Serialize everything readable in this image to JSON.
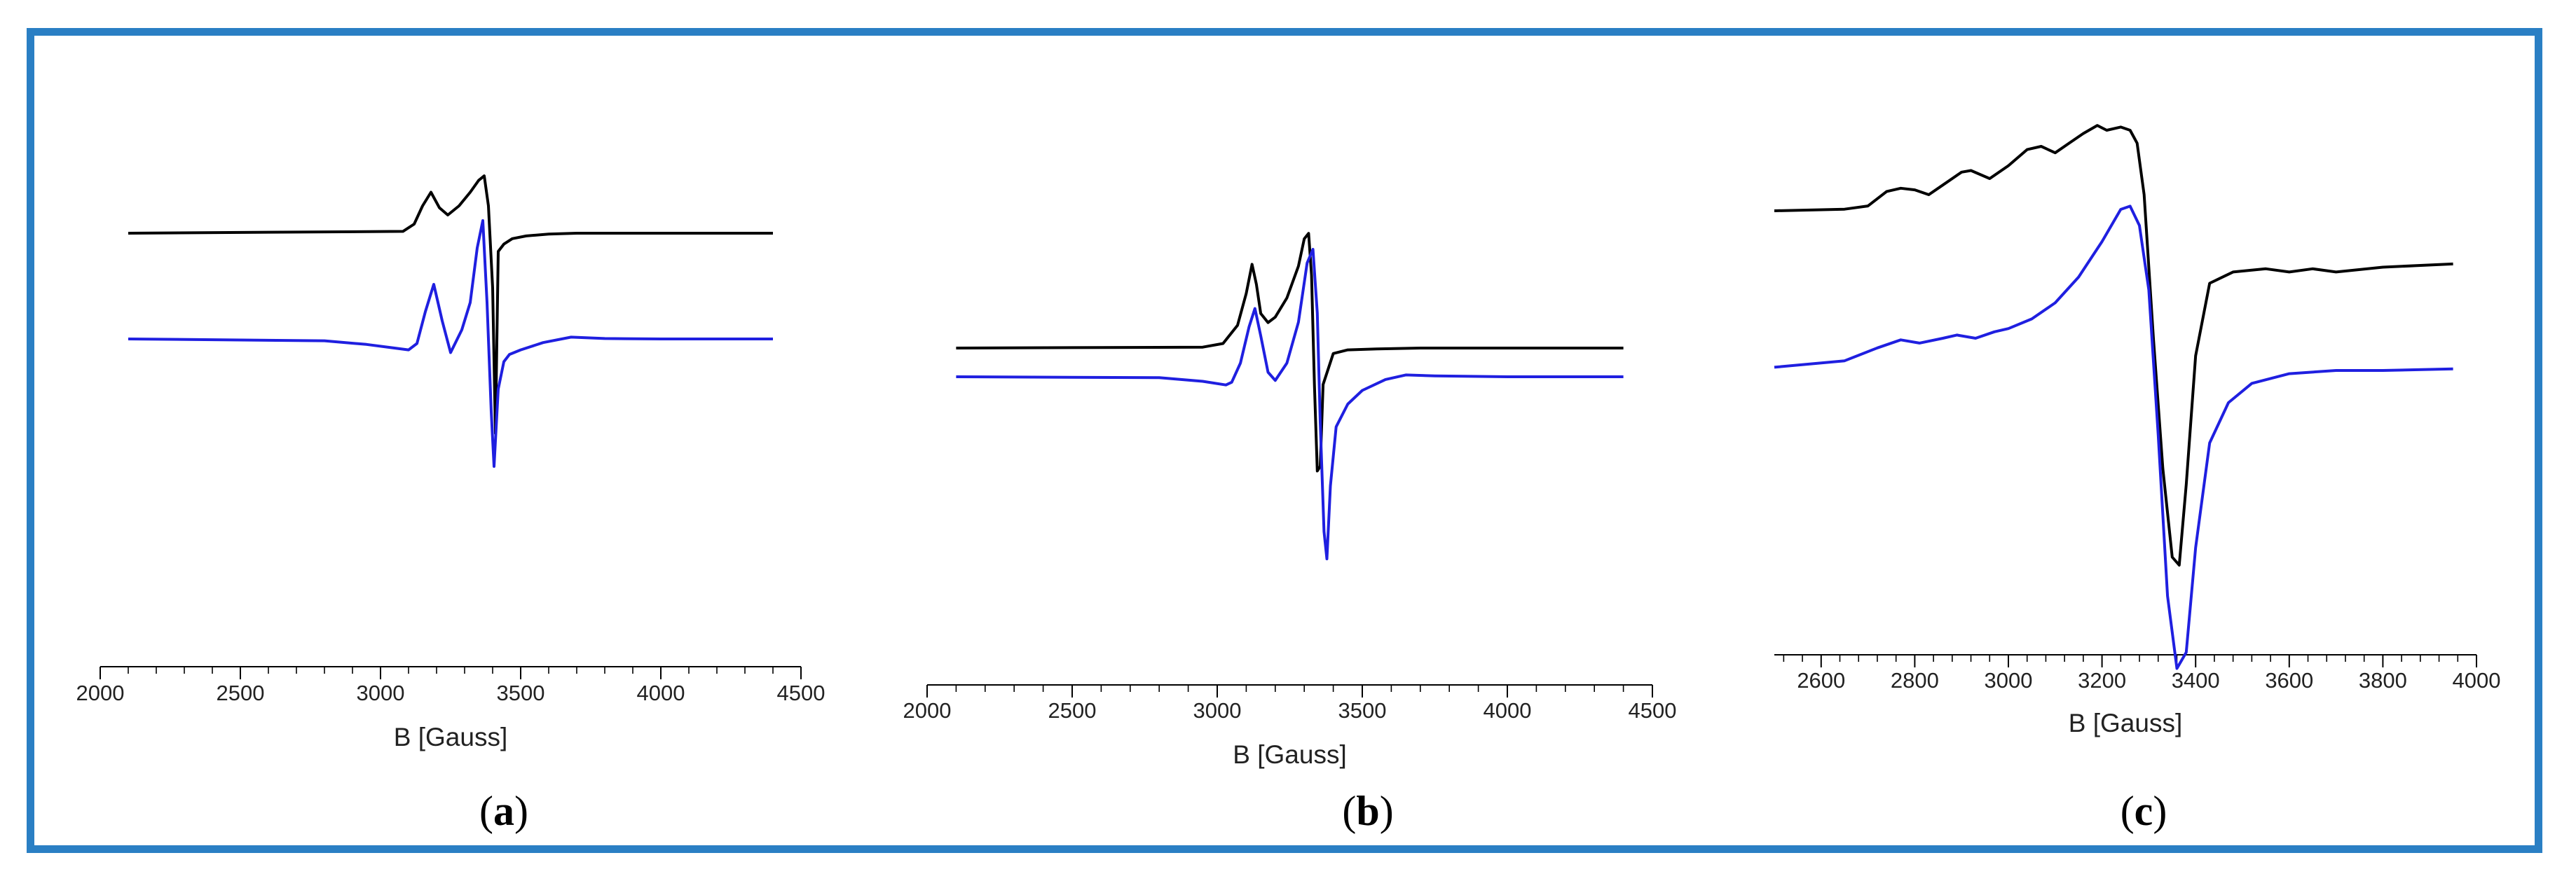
{
  "colors": {
    "frame": "#2A7FC4",
    "series_black": "#000000",
    "series_blue": "#1F1FE0"
  },
  "chart_data": [
    {
      "type": "line",
      "panel": "a",
      "xlabel": "B [Gauss]",
      "ylabel": "",
      "xlim": [
        2000,
        4500
      ],
      "xticks": [
        2000,
        2500,
        3000,
        3500,
        4000,
        4500
      ],
      "series": [
        {
          "color": "#000000",
          "x": [
            2100,
            3080,
            3120,
            3150,
            3180,
            3210,
            3240,
            3280,
            3320,
            3350,
            3370,
            3385,
            3400,
            3410,
            3420,
            3440,
            3470,
            3520,
            3600,
            3700,
            4400
          ],
          "y": [
            0,
            0.02,
            0.1,
            0.3,
            0.45,
            0.28,
            0.2,
            0.3,
            0.45,
            0.58,
            0.63,
            0.3,
            -0.6,
            -2.2,
            -0.2,
            -0.12,
            -0.06,
            -0.03,
            -0.01,
            0,
            0
          ]
        },
        {
          "color": "#1F1FE0",
          "x": [
            2100,
            2800,
            2950,
            3050,
            3100,
            3130,
            3160,
            3190,
            3220,
            3250,
            3290,
            3320,
            3345,
            3365,
            3380,
            3395,
            3405,
            3420,
            3440,
            3460,
            3500,
            3580,
            3680,
            3800,
            4000,
            4400
          ],
          "y": [
            0,
            -0.02,
            -0.06,
            -0.1,
            -0.12,
            -0.05,
            0.3,
            0.6,
            0.2,
            -0.15,
            0.1,
            0.4,
            1.0,
            1.3,
            0.4,
            -0.8,
            -1.4,
            -0.55,
            -0.25,
            -0.17,
            -0.12,
            -0.04,
            0.02,
            0.005,
            0,
            0
          ]
        }
      ]
    },
    {
      "type": "line",
      "panel": "b",
      "xlabel": "B [Gauss]",
      "ylabel": "",
      "xlim": [
        2000,
        4500
      ],
      "xticks": [
        2000,
        2500,
        3000,
        3500,
        4000,
        4500
      ],
      "series": [
        {
          "color": "#000000",
          "x": [
            2100,
            2950,
            3020,
            3070,
            3100,
            3120,
            3135,
            3150,
            3175,
            3200,
            3240,
            3280,
            3300,
            3315,
            3325,
            3335,
            3345,
            3355,
            3365,
            3400,
            3450,
            3550,
            3700,
            4400
          ],
          "y": [
            0,
            0.01,
            0.05,
            0.25,
            0.6,
            0.92,
            0.7,
            0.38,
            0.28,
            0.34,
            0.55,
            0.9,
            1.2,
            1.26,
            0.8,
            -0.4,
            -1.35,
            -1.3,
            -0.4,
            -0.06,
            -0.02,
            -0.01,
            0,
            0
          ]
        },
        {
          "color": "#1F1FE0",
          "x": [
            2100,
            2800,
            2950,
            3030,
            3050,
            3080,
            3110,
            3130,
            3150,
            3175,
            3200,
            3240,
            3280,
            3310,
            3330,
            3345,
            3355,
            3368,
            3378,
            3390,
            3410,
            3450,
            3500,
            3580,
            3650,
            3750,
            4000,
            4400
          ],
          "y": [
            0,
            -0.01,
            -0.05,
            -0.09,
            -0.06,
            0.15,
            0.55,
            0.75,
            0.45,
            0.05,
            -0.04,
            0.15,
            0.6,
            1.25,
            1.4,
            0.7,
            -0.5,
            -1.7,
            -2.0,
            -1.2,
            -0.55,
            -0.3,
            -0.15,
            -0.03,
            0.02,
            0.01,
            0,
            0
          ]
        }
      ]
    },
    {
      "type": "line",
      "panel": "c",
      "xlabel": "B [Gauss]",
      "ylabel": "",
      "xlim": [
        2500,
        4000
      ],
      "xticks": [
        2600,
        2800,
        3000,
        3200,
        3400,
        3600,
        3800,
        4000
      ],
      "series": [
        {
          "color": "#000000",
          "x": [
            2500,
            2650,
            2700,
            2740,
            2770,
            2800,
            2830,
            2860,
            2900,
            2920,
            2960,
            3000,
            3040,
            3070,
            3100,
            3130,
            3160,
            3190,
            3210,
            3240,
            3260,
            3275,
            3290,
            3310,
            3330,
            3350,
            3365,
            3380,
            3400,
            3430,
            3480,
            3550,
            3600,
            3650,
            3700,
            3800,
            3950
          ],
          "y": [
            0,
            0.01,
            0.03,
            0.12,
            0.14,
            0.13,
            0.1,
            0.16,
            0.24,
            0.25,
            0.2,
            0.28,
            0.38,
            0.4,
            0.36,
            0.42,
            0.48,
            0.53,
            0.5,
            0.52,
            0.5,
            0.42,
            0.1,
            -0.8,
            -1.6,
            -2.15,
            -2.2,
            -1.7,
            -0.9,
            -0.45,
            -0.38,
            -0.36,
            -0.38,
            -0.36,
            -0.38,
            -0.35,
            -0.33
          ]
        },
        {
          "color": "#1F1FE0",
          "x": [
            2500,
            2650,
            2720,
            2770,
            2810,
            2860,
            2890,
            2930,
            2970,
            3000,
            3050,
            3100,
            3150,
            3200,
            3240,
            3260,
            3280,
            3300,
            3320,
            3340,
            3360,
            3380,
            3400,
            3430,
            3470,
            3520,
            3600,
            3700,
            3800,
            3950
          ],
          "y": [
            -0.48,
            -0.44,
            -0.36,
            -0.31,
            -0.33,
            -0.3,
            -0.28,
            -0.3,
            -0.26,
            -0.24,
            -0.18,
            -0.08,
            0.08,
            0.3,
            0.5,
            0.52,
            0.4,
            0.0,
            -0.9,
            -1.9,
            -2.35,
            -2.25,
            -1.6,
            -0.95,
            -0.7,
            -0.58,
            -0.52,
            -0.5,
            -0.5,
            -0.49
          ]
        }
      ]
    }
  ]
}
